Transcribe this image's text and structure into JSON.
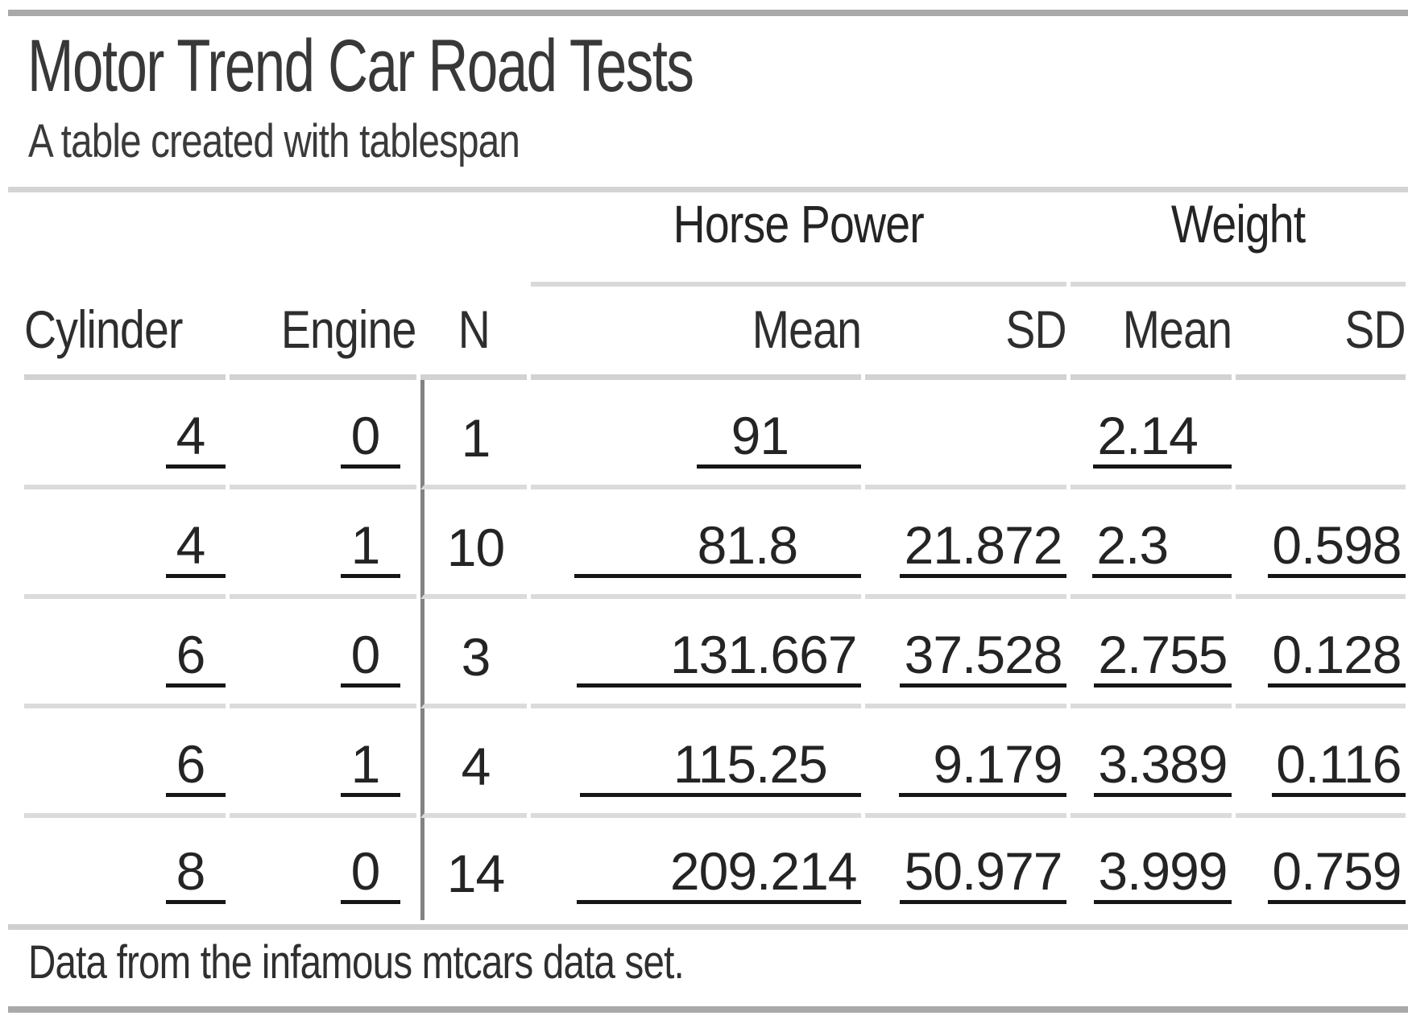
{
  "page": {
    "title": "Motor Trend Car Road Tests",
    "subtitle": "A table created with tablespan",
    "footnote": "Data from the infamous mtcars data set."
  },
  "colors": {
    "accent_bar": "#a9a9a9",
    "title_divider": "#d4d4d4",
    "spanner_rule": "#d9d9d9",
    "header_rule": "#d2d2d2",
    "row_rule": "#dbdbdb",
    "footnote_rule": "#cfcfcf",
    "stub_divider": "#828282",
    "value_underline": "#161616",
    "text": "#242424"
  },
  "table": {
    "spanners": [
      {
        "label": "Horse Power"
      },
      {
        "label": "Weight"
      }
    ],
    "columns": [
      {
        "id": "cyl",
        "label": "Cylinder"
      },
      {
        "id": "eng",
        "label": "Engine"
      },
      {
        "id": "n",
        "label": "N"
      },
      {
        "id": "hpm",
        "label": "Mean"
      },
      {
        "id": "hpsd",
        "label": "SD"
      },
      {
        "id": "wtm",
        "label": "Mean"
      },
      {
        "id": "wtsd",
        "label": "SD"
      }
    ],
    "rows": [
      {
        "cells": [
          {
            "v": "4",
            "l": 0.2,
            "t": 0.55
          },
          {
            "v": "0",
            "l": 0.2,
            "t": 0.55
          },
          {
            "v": "1",
            "u": false
          },
          {
            "v": "91",
            "l": 1,
            "t": 2.3
          },
          {
            "v": "",
            "u": false
          },
          {
            "v": "2.14",
            "l": 0,
            "t": 1
          },
          {
            "v": "",
            "u": false
          }
        ]
      },
      {
        "cells": [
          {
            "v": "4",
            "l": 0.2,
            "t": 0.55
          },
          {
            "v": "1",
            "l": 0.2,
            "t": 0.55
          },
          {
            "v": "10",
            "u": false
          },
          {
            "v": "81.8",
            "l": 4,
            "t": 2
          },
          {
            "v": "21.872",
            "l": 0,
            "t": 0
          },
          {
            "v": "2.3",
            "l": 0,
            "t": 2
          },
          {
            "v": "0.598",
            "l": 0,
            "t": 0
          }
        ]
      },
      {
        "cells": [
          {
            "v": "6",
            "l": 0.2,
            "t": 0.55
          },
          {
            "v": "0",
            "l": 0.2,
            "t": 0.55
          },
          {
            "v": "3",
            "u": false
          },
          {
            "v": "131.667",
            "l": 3,
            "t": 0
          },
          {
            "v": "37.528",
            "l": 0,
            "t": 0
          },
          {
            "v": "2.755",
            "l": 0,
            "t": 0
          },
          {
            "v": "0.128",
            "l": 0,
            "t": 0
          }
        ]
      },
      {
        "cells": [
          {
            "v": "6",
            "l": 0.2,
            "t": 0.55
          },
          {
            "v": "1",
            "l": 0.2,
            "t": 0.55
          },
          {
            "v": "4",
            "u": false
          },
          {
            "v": "115.25",
            "l": 3,
            "t": 1
          },
          {
            "v": "9.179",
            "l": 1,
            "t": 0
          },
          {
            "v": "3.389",
            "l": 0,
            "t": 0
          },
          {
            "v": "0.116",
            "l": 0,
            "t": 0
          }
        ]
      },
      {
        "cells": [
          {
            "v": "8",
            "l": 0.2,
            "t": 0.55
          },
          {
            "v": "0",
            "l": 0.2,
            "t": 0.55
          },
          {
            "v": "14",
            "u": false
          },
          {
            "v": "209.214",
            "l": 3,
            "t": 0
          },
          {
            "v": "50.977",
            "l": 0,
            "t": 0
          },
          {
            "v": "3.999",
            "l": 0,
            "t": 0
          },
          {
            "v": "0.759",
            "l": 0,
            "t": 0
          }
        ]
      }
    ]
  },
  "chart_data": {
    "type": "table",
    "title": "Motor Trend Car Road Tests",
    "subtitle": "A table created with tablespan",
    "footnote": "Data from the infamous mtcars data set.",
    "column_spanners": [
      {
        "label": "Horse Power",
        "columns": [
          "Mean",
          "SD"
        ]
      },
      {
        "label": "Weight",
        "columns": [
          "Mean",
          "SD"
        ]
      }
    ],
    "columns": [
      "Cylinder",
      "Engine",
      "N",
      "Horse Power Mean",
      "Horse Power SD",
      "Weight Mean",
      "Weight SD"
    ],
    "rows": [
      [
        4,
        0,
        1,
        91,
        null,
        2.14,
        null
      ],
      [
        4,
        1,
        10,
        81.8,
        21.872,
        2.3,
        0.598
      ],
      [
        6,
        0,
        3,
        131.667,
        37.528,
        2.755,
        0.128
      ],
      [
        6,
        1,
        4,
        115.25,
        9.179,
        3.389,
        0.116
      ],
      [
        8,
        0,
        14,
        209.214,
        50.977,
        3.999,
        0.759
      ]
    ]
  }
}
